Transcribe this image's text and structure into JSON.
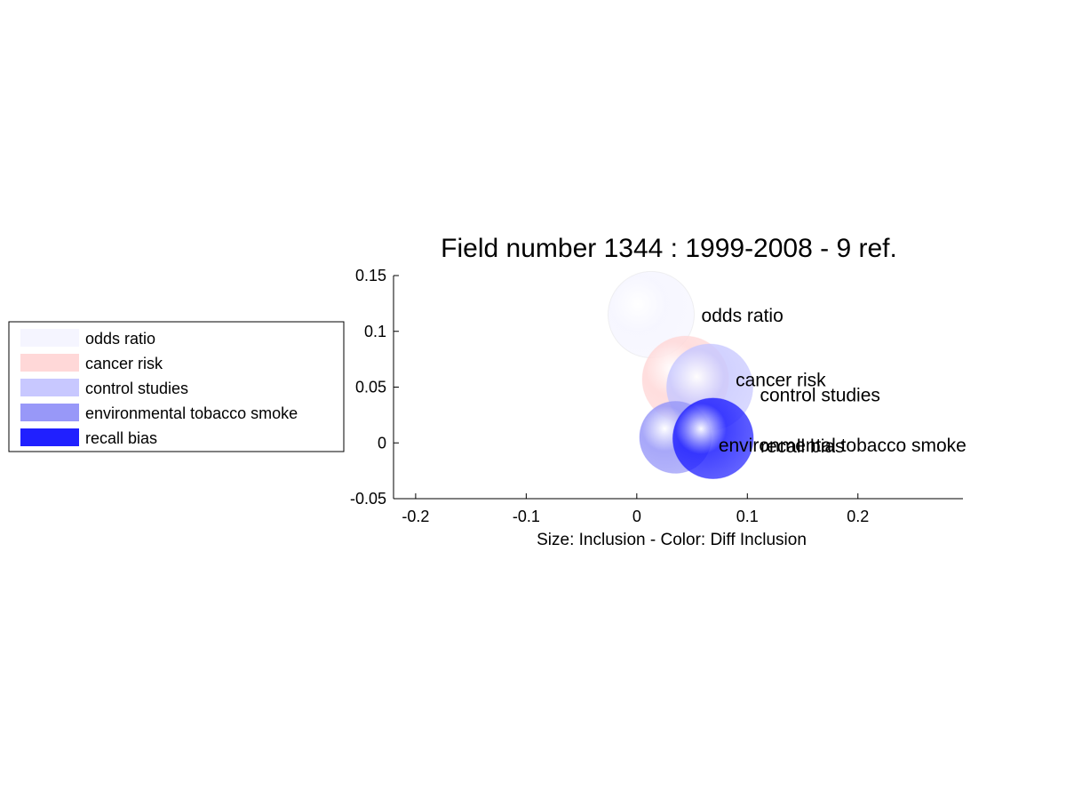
{
  "chart_data": {
    "type": "scatter",
    "title": "Field number 1344 : 1999-2008  - 9 ref.",
    "xlabel": "Size: Inclusion - Color: Diff Inclusion",
    "ylabel": "",
    "xlim": [
      -0.22,
      0.295
    ],
    "ylim": [
      -0.05,
      0.15
    ],
    "xticks": [
      -0.2,
      -0.1,
      0,
      0.1,
      0.2
    ],
    "xtick_labels": [
      "-0.2",
      "-0.1",
      "0",
      "0.1",
      "0.2"
    ],
    "yticks": [
      0.15,
      0.1,
      0.05,
      0,
      -0.05
    ],
    "ytick_labels": [
      "0.15",
      "0.1",
      "0.05",
      "0",
      "-0.05"
    ],
    "legend_placement": "left",
    "grid": false,
    "points": [
      {
        "label": "odds ratio",
        "x": 0.013,
        "y": 0.115,
        "size": 0.03,
        "color": "#f5f5ff"
      },
      {
        "label": "cancer risk",
        "x": 0.044,
        "y": 0.057,
        "size": 0.03,
        "color": "#ffd8d8"
      },
      {
        "label": "control studies",
        "x": 0.066,
        "y": 0.05,
        "size": 0.03,
        "color": "#c8c8ff"
      },
      {
        "label": "environmental tobacco smoke",
        "x": 0.035,
        "y": 0.005,
        "size": 0.025,
        "color": "#9898f8"
      },
      {
        "label": "recall bias",
        "x": 0.069,
        "y": 0.004,
        "size": 0.028,
        "color": "#2020ff"
      }
    ],
    "legend": [
      {
        "label": "odds ratio",
        "color": "#f5f5ff"
      },
      {
        "label": "cancer risk",
        "color": "#ffd8d8"
      },
      {
        "label": "control studies",
        "color": "#c8c8ff"
      },
      {
        "label": "environmental tobacco smoke",
        "color": "#9898f8"
      },
      {
        "label": "recall bias",
        "color": "#2020ff"
      }
    ]
  }
}
